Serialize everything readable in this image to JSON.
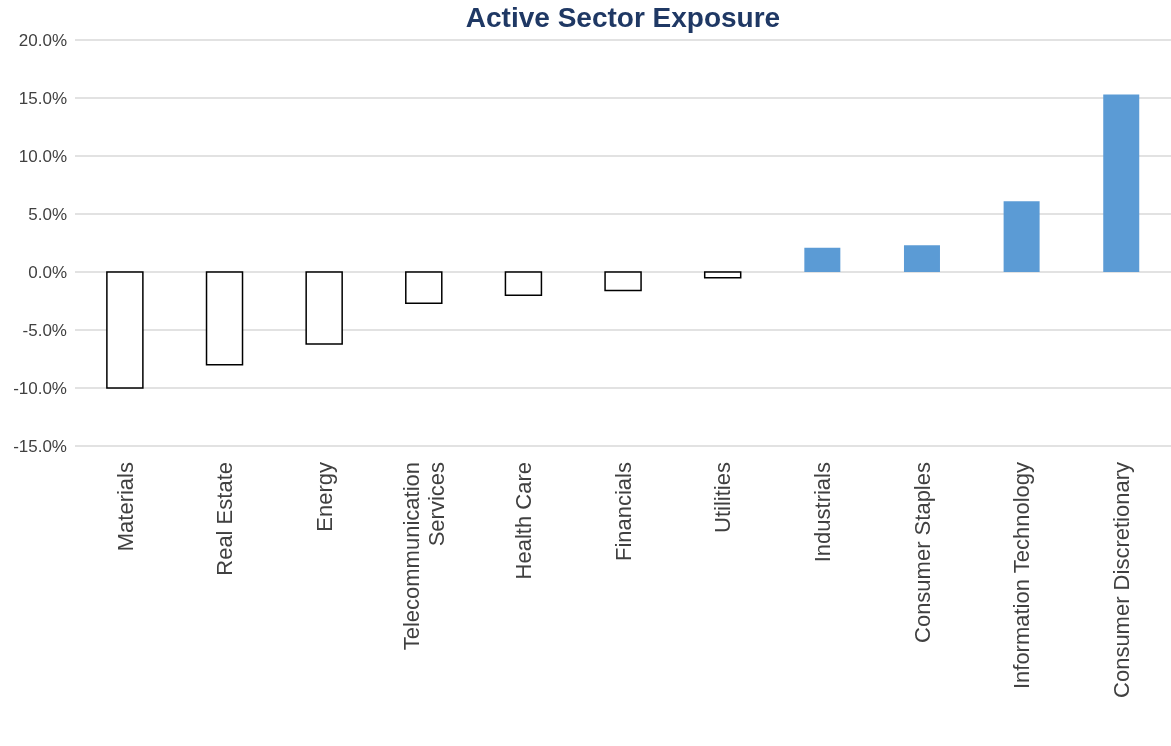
{
  "chart_data": {
    "type": "bar",
    "title": "Active Sector Exposure",
    "categories": [
      "Materials",
      "Real Estate",
      "Energy",
      "Telecommunication Services",
      "Health Care",
      "Financials",
      "Utilities",
      "Industrials",
      "Consumer Staples",
      "Information Technology",
      "Consumer Discretionary"
    ],
    "values": [
      -10.0,
      -8.0,
      -6.2,
      -2.7,
      -2.0,
      -1.6,
      -0.5,
      2.1,
      2.3,
      6.1,
      15.3
    ],
    "colors": [
      "#ffffff",
      "#ffffff",
      "#ffffff",
      "#ffffff",
      "#ffffff",
      "#ffffff",
      "#ffffff",
      "#5b9bd5",
      "#5b9bd5",
      "#5b9bd5",
      "#5b9bd5"
    ],
    "ylim": [
      -15,
      20
    ],
    "yticks": [
      {
        "value": -15,
        "label": "-15.0%"
      },
      {
        "value": -10,
        "label": "-10.0%"
      },
      {
        "value": -5,
        "label": "-5.0%"
      },
      {
        "value": 0,
        "label": "0.0%"
      },
      {
        "value": 5,
        "label": "5.0%"
      },
      {
        "value": 10,
        "label": "10.0%"
      },
      {
        "value": 15,
        "label": "15.0%"
      },
      {
        "value": 20,
        "label": "20.0%"
      }
    ],
    "grid": "y",
    "legend": false
  }
}
